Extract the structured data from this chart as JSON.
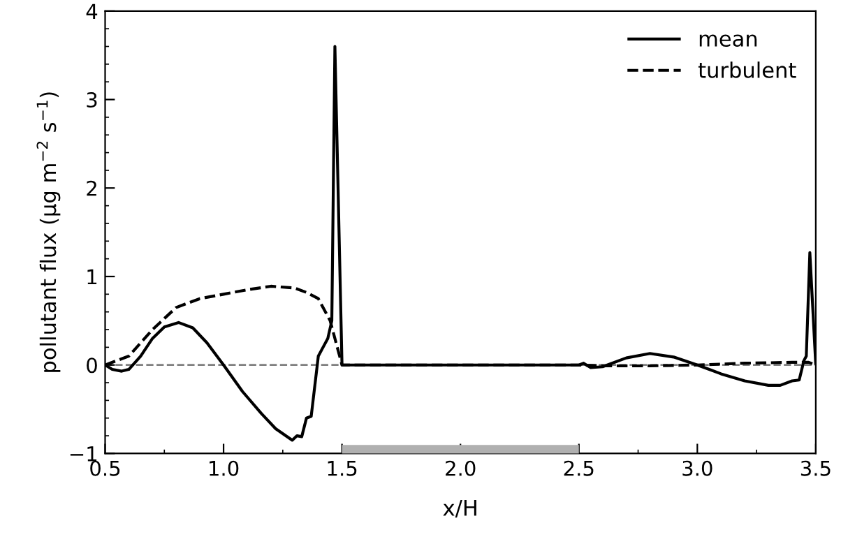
{
  "chart_data": {
    "type": "line",
    "xlabel": "x/H",
    "ylabel": "pollutant flux (µg m$^{−2}$ s$^{−1}$)",
    "xlim": [
      0.5,
      3.5
    ],
    "ylim": [
      -1,
      4
    ],
    "xticks": [
      0.5,
      {
        "value": 1,
        "label": "1.0"
      },
      1.5,
      {
        "value": 2,
        "label": "2.0"
      },
      2.5,
      {
        "value": 3,
        "label": "3.0"
      },
      3.5
    ],
    "yticks": [
      {
        "value": -1,
        "label": "−1"
      },
      0,
      1,
      2,
      3,
      4
    ],
    "legend": "top right",
    "grid": false,
    "series": [
      {
        "name": "mean",
        "color": "#000000",
        "line_style": "solid",
        "x": [
          0.5,
          0.53,
          0.57,
          0.6,
          0.65,
          0.7,
          0.75,
          0.81,
          0.87,
          0.93,
          1.0,
          1.08,
          1.16,
          1.22,
          1.29,
          1.31,
          1.33,
          1.35,
          1.37,
          1.4,
          1.42,
          1.44,
          1.457,
          1.47,
          1.5,
          2.5,
          2.52,
          2.55,
          2.6,
          2.7,
          2.8,
          2.9,
          3.0,
          3.1,
          3.2,
          3.3,
          3.35,
          3.4,
          3.43,
          3.45,
          3.46,
          3.475,
          3.5
        ],
        "values": [
          0.0,
          -0.05,
          -0.07,
          -0.05,
          0.1,
          0.3,
          0.43,
          0.48,
          0.42,
          0.25,
          0.0,
          -0.3,
          -0.55,
          -0.72,
          -0.85,
          -0.8,
          -0.81,
          -0.6,
          -0.58,
          0.1,
          0.2,
          0.3,
          0.5,
          3.6,
          0.0,
          0.0,
          0.02,
          -0.03,
          -0.02,
          0.08,
          0.13,
          0.09,
          0.0,
          -0.1,
          -0.18,
          -0.23,
          -0.23,
          -0.18,
          -0.17,
          0.05,
          0.1,
          1.27,
          0.0
        ]
      },
      {
        "name": "turbulent",
        "color": "#000000",
        "line_style": "dashed",
        "x": [
          0.5,
          0.6,
          0.7,
          0.8,
          0.9,
          1.0,
          1.1,
          1.2,
          1.3,
          1.35,
          1.4,
          1.45,
          1.48,
          1.5,
          2.5,
          2.6,
          2.8,
          3.0,
          3.2,
          3.4,
          3.47,
          3.5
        ],
        "values": [
          0.0,
          0.1,
          0.4,
          0.65,
          0.75,
          0.8,
          0.85,
          0.89,
          0.87,
          0.82,
          0.75,
          0.5,
          0.2,
          0.0,
          0.0,
          -0.01,
          -0.01,
          0.0,
          0.02,
          0.03,
          0.03,
          0.0
        ]
      },
      {
        "color": "#b0b0b0",
        "line_style": "solid",
        "x": [
          1.5,
          2.5
        ],
        "values": [
          -0.97,
          -0.97
        ]
      }
    ],
    "ref_lines": [
      {
        "axis": "y",
        "value": 0,
        "color": "#808080",
        "line_style": "dashed"
      }
    ]
  }
}
